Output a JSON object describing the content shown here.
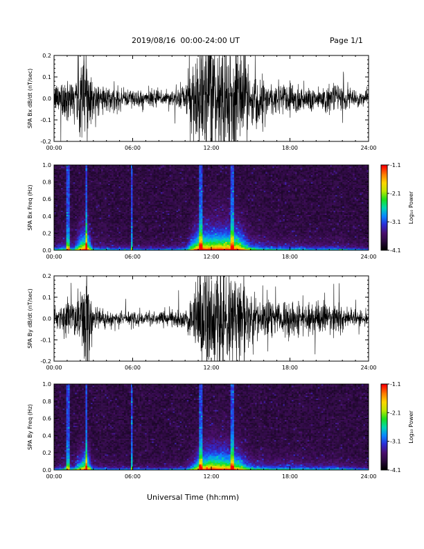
{
  "header": {
    "title": "2019/08/16  00:00-24:00 UT",
    "page": "Page 1/1"
  },
  "footer": {
    "xlabel": "Universal Time (hh:mm)"
  },
  "colors": {
    "trace": "#000000",
    "colormap": [
      "#000000",
      "#2a0a3c",
      "#4b0f6e",
      "#2d2bd6",
      "#0a86ff",
      "#00d6b0",
      "#1be01b",
      "#bfe600",
      "#ffd400",
      "#ff7a00",
      "#ff0000"
    ]
  },
  "colorbar": {
    "label": "Log₁₀ Power",
    "ticks": [
      -1.1,
      -2.1,
      -3.1,
      -4.1
    ],
    "tick_labels": [
      "-1.1",
      "-2.1",
      "-3.1",
      "-4.1"
    ],
    "range": [
      -4.1,
      -1.1
    ]
  },
  "chart_data": [
    {
      "type": "line",
      "ylabel": "SPA Bx dB/dt (nT/sec)",
      "ylim": [
        -0.2,
        0.2
      ],
      "yticks": [
        0.2,
        0.1,
        0.0,
        -0.1,
        -0.2
      ],
      "ytick_labels": [
        "0.2",
        "0.1",
        "0.0",
        "-0.1",
        "-0.2"
      ],
      "xlim": [
        "00:00",
        "24:00"
      ],
      "xticks": [
        "00:00",
        "06:00",
        "12:00",
        "18:00",
        "24:00"
      ],
      "x": [
        "00:00",
        "00:30",
        "01:00",
        "01:30",
        "02:00",
        "02:30",
        "03:00",
        "04:00",
        "05:00",
        "06:00",
        "07:00",
        "08:00",
        "09:00",
        "10:00",
        "10:30",
        "11:00",
        "12:00",
        "13:00",
        "14:00",
        "15:00",
        "16:00",
        "17:00",
        "18:00",
        "19:00",
        "20:00",
        "21:00",
        "22:00",
        "23:00",
        "24:00"
      ],
      "amplitude": [
        0.06,
        0.1,
        0.12,
        0.09,
        0.25,
        0.3,
        0.08,
        0.06,
        0.05,
        0.05,
        0.04,
        0.04,
        0.05,
        0.06,
        0.2,
        0.3,
        0.3,
        0.3,
        0.3,
        0.14,
        0.1,
        0.08,
        0.09,
        0.07,
        0.06,
        0.07,
        0.06,
        0.04,
        0.03
      ]
    },
    {
      "type": "heatmap",
      "ylabel": "SPA Bx Freq (Hz)",
      "ylim": [
        0.0,
        1.0
      ],
      "yticks": [
        1.0,
        0.8,
        0.6,
        0.4,
        0.2,
        0.0
      ],
      "ytick_labels": [
        "1.0",
        "0.8",
        "0.6",
        "0.4",
        "0.2",
        "0.0"
      ],
      "xlim": [
        "00:00",
        "24:00"
      ],
      "xticks": [
        "00:00",
        "06:00",
        "12:00",
        "18:00",
        "24:00"
      ],
      "value_label": "Log₁₀ Power",
      "value_range": [
        -4.1,
        -1.1
      ]
    },
    {
      "type": "line",
      "ylabel": "SPA By dB/dt (nT/sec)",
      "ylim": [
        -0.2,
        0.2
      ],
      "yticks": [
        0.2,
        0.1,
        0.0,
        -0.1,
        -0.2
      ],
      "ytick_labels": [
        "0.2",
        "0.1",
        "0.0",
        "-0.1",
        "-0.2"
      ],
      "xlim": [
        "00:00",
        "24:00"
      ],
      "xticks": [
        "00:00",
        "06:00",
        "12:00",
        "18:00",
        "24:00"
      ],
      "x": [
        "00:00",
        "00:30",
        "01:00",
        "01:30",
        "02:00",
        "02:30",
        "03:00",
        "04:00",
        "05:00",
        "06:00",
        "07:00",
        "08:00",
        "09:00",
        "10:00",
        "10:30",
        "11:00",
        "12:00",
        "13:00",
        "14:00",
        "15:00",
        "16:00",
        "17:00",
        "18:00",
        "19:00",
        "20:00",
        "21:00",
        "22:00",
        "23:00",
        "24:00"
      ],
      "amplitude": [
        0.03,
        0.06,
        0.1,
        0.08,
        0.2,
        0.28,
        0.06,
        0.04,
        0.04,
        0.04,
        0.03,
        0.03,
        0.04,
        0.05,
        0.12,
        0.24,
        0.3,
        0.28,
        0.25,
        0.12,
        0.1,
        0.09,
        0.09,
        0.08,
        0.07,
        0.08,
        0.06,
        0.04,
        0.03
      ]
    },
    {
      "type": "heatmap",
      "ylabel": "SPA By Freq (Hz)",
      "ylim": [
        0.0,
        1.0
      ],
      "yticks": [
        1.0,
        0.8,
        0.6,
        0.4,
        0.2,
        0.0
      ],
      "ytick_labels": [
        "1.0",
        "0.8",
        "0.6",
        "0.4",
        "0.2",
        "0.0"
      ],
      "xlim": [
        "00:00",
        "24:00"
      ],
      "xticks": [
        "00:00",
        "06:00",
        "12:00",
        "18:00",
        "24:00"
      ],
      "value_label": "Log₁₀ Power",
      "value_range": [
        -4.1,
        -1.1
      ]
    }
  ]
}
